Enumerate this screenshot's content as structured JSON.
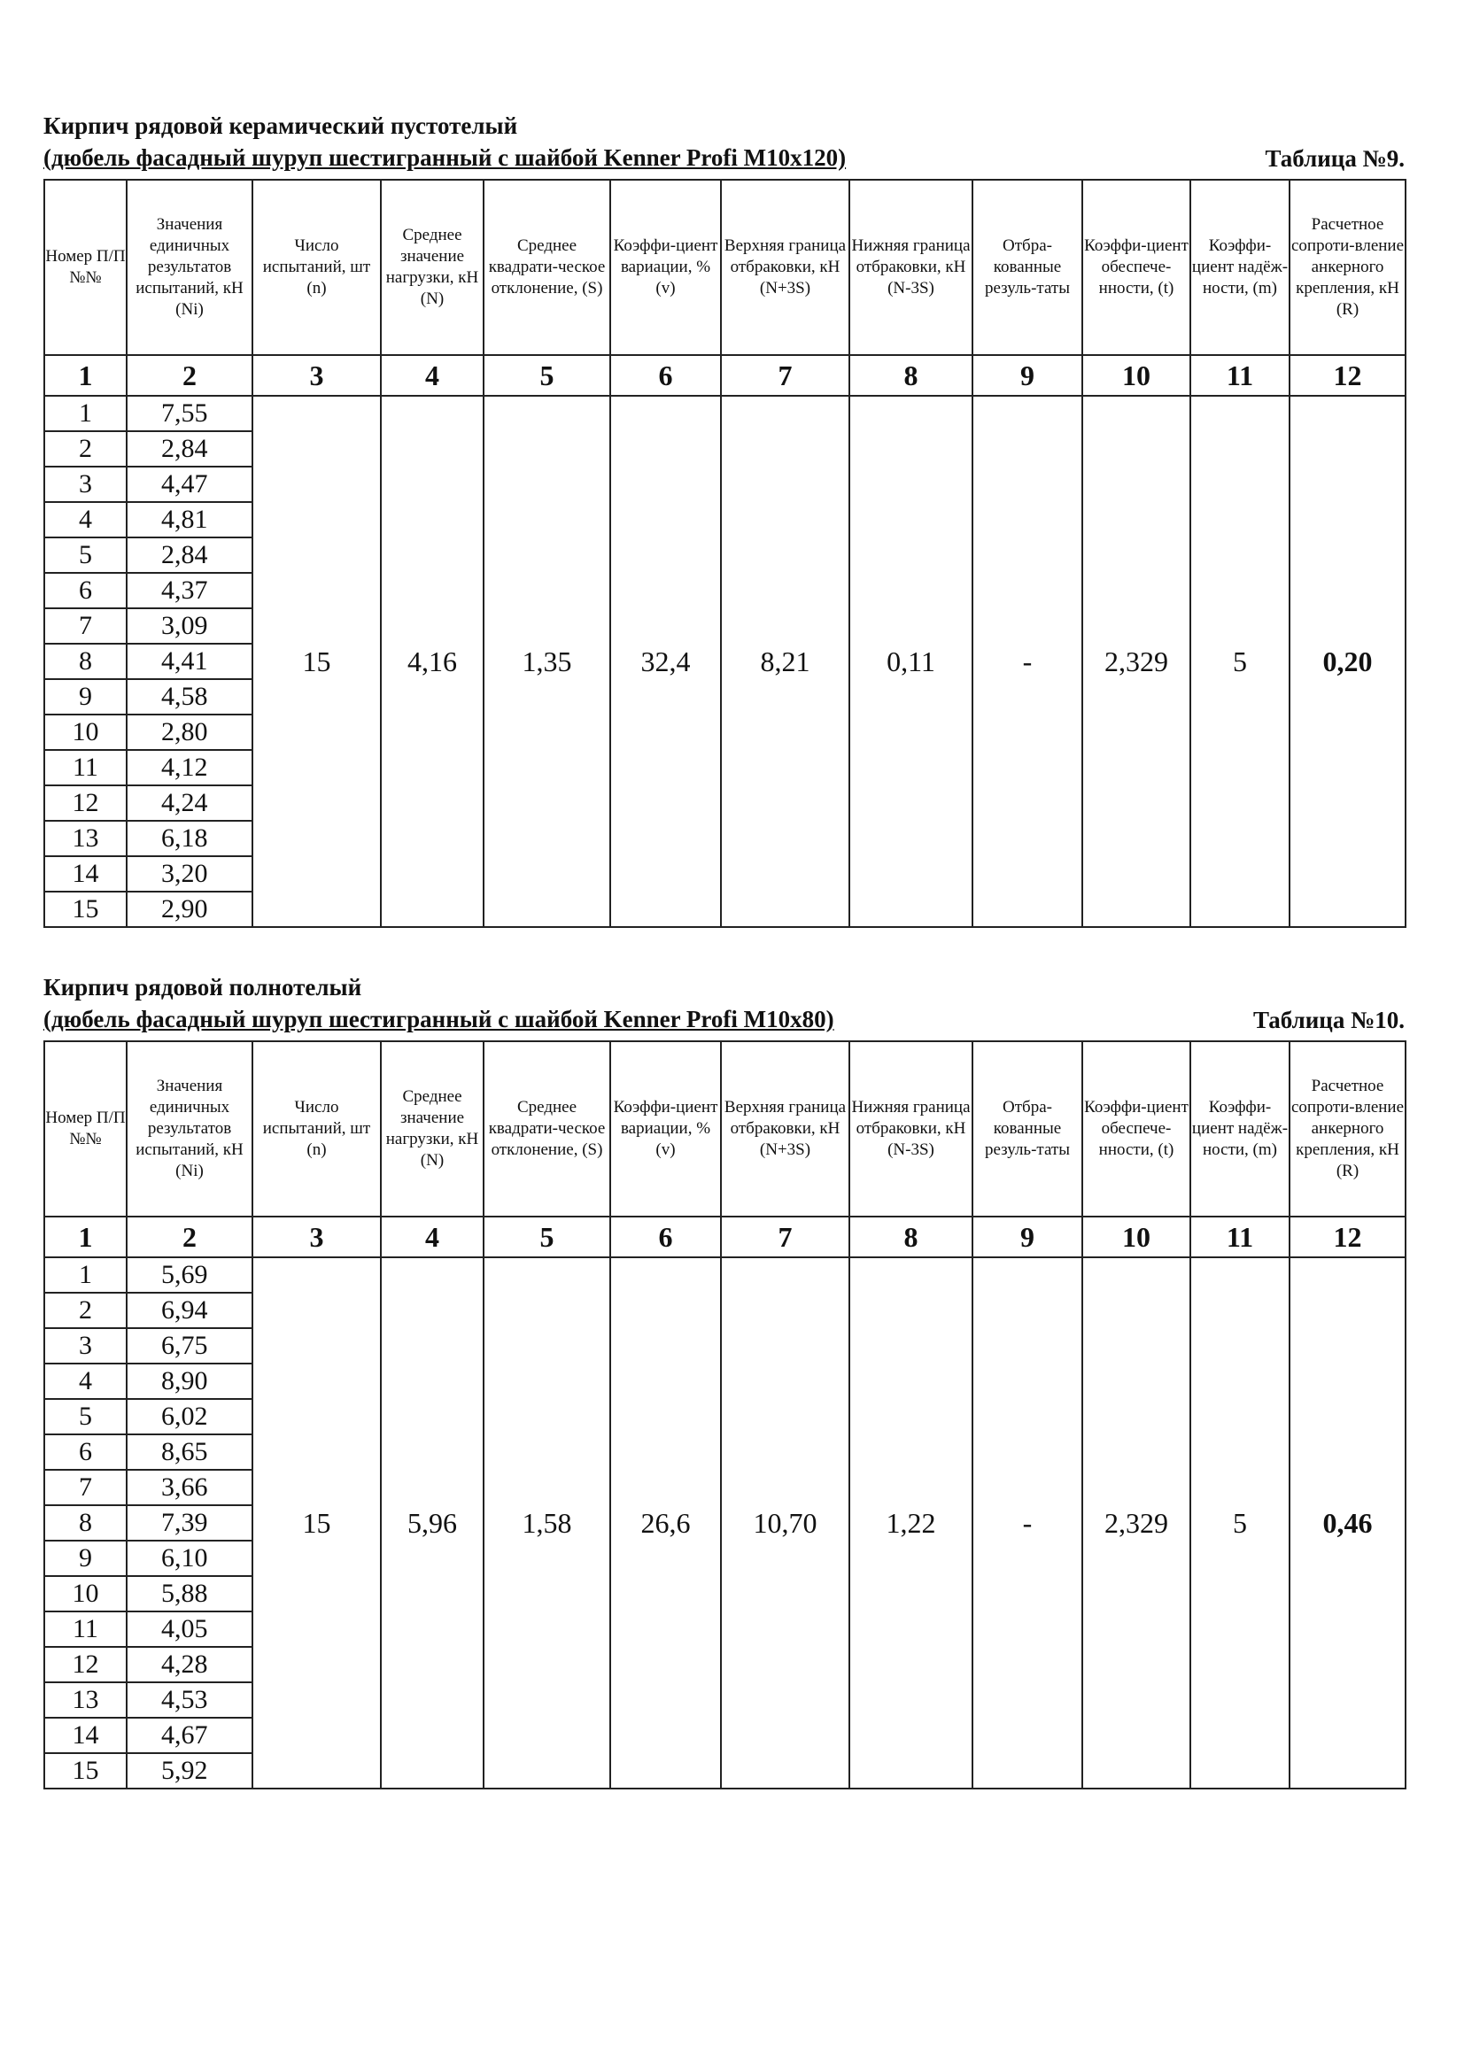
{
  "headers": [
    "Номер П/П №№",
    "Значения единичных результатов испытаний, кН (Ni)",
    "Число испытаний, шт (n)",
    "Среднее значение нагрузки, кН (N)",
    "Среднее квадрати-ческое отклонение, (S)",
    "Коэффи-циент вариации, % (v)",
    "Верхняя граница отбраковки, кН (N+3S)",
    "Нижняя граница отбраковки, кН (N-3S)",
    "Отбра-кованные резуль-таты",
    "Коэффи-циент обеспече-нности, (t)",
    "Коэффи-циент надёж-ности, (m)",
    "Расчетное сопроти-вление анкерного крепления, кН (R)"
  ],
  "col_numbers": [
    "1",
    "2",
    "3",
    "4",
    "5",
    "6",
    "7",
    "8",
    "9",
    "10",
    "11",
    "12"
  ],
  "tables": [
    {
      "title": "Кирпич рядовой керамический пустотелый",
      "subtitle": "(дюбель фасадный шуруп шестигранный с шайбой Kenner Profi M10x120)",
      "table_no": "Таблица №9.",
      "values": [
        "7,55",
        "2,84",
        "4,47",
        "4,81",
        "2,84",
        "4,37",
        "3,09",
        "4,41",
        "4,58",
        "2,80",
        "4,12",
        "4,24",
        "6,18",
        "3,20",
        "2,90"
      ],
      "summary": [
        "15",
        "4,16",
        "1,35",
        "32,4",
        "8,21",
        "0,11",
        "-",
        "2,329",
        "5",
        "0,20"
      ]
    },
    {
      "title": "Кирпич рядовой полнотелый",
      "subtitle": "(дюбель фасадный шуруп шестигранный с шайбой Kenner Profi M10x80)",
      "table_no": "Таблица №10.",
      "values": [
        "5,69",
        "6,94",
        "6,75",
        "8,90",
        "6,02",
        "8,65",
        "3,66",
        "7,39",
        "6,10",
        "5,88",
        "4,05",
        "4,28",
        "4,53",
        "4,67",
        "5,92"
      ],
      "summary": [
        "15",
        "5,96",
        "1,58",
        "26,6",
        "10,70",
        "1,22",
        "-",
        "2,329",
        "5",
        "0,46"
      ]
    }
  ]
}
